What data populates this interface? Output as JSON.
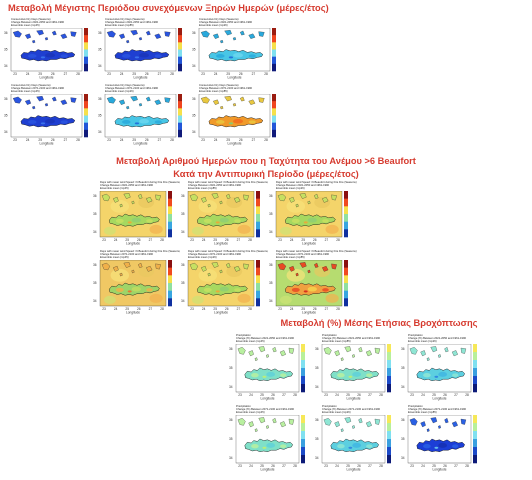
{
  "section1": {
    "title": "Μεταβολή Μέγιστης Περιόδου συνεχόμενων Ξηρών Ημερών (μέρες/έτος)",
    "panels": [
      {
        "lines": [
          "Consecutive Dry Days (Seasons)",
          "Change Between 2021-2050 and 1961-1990",
          "Ensemble mean (rcp45)"
        ],
        "scheme": "dry_blue"
      },
      {
        "lines": [
          "Consecutive Dry Days (Seasons)",
          "Change Between 2021-2050 and 1961-1990",
          "Ensemble mean (rcp85)"
        ],
        "scheme": "dry_blue"
      },
      {
        "lines": [
          "Consecutive Dry Days (Seasons)",
          "Change Between 2021-2050 and 1961-1990",
          "Ensemble mean (rcp26)"
        ],
        "scheme": "dry_cyan"
      },
      {
        "lines": [
          "Consecutive Dry Days (Seasons)",
          "Change Between 2071-2100 and 1961-1990",
          "Ensemble mean (rcp45)"
        ],
        "scheme": "dry_blue"
      },
      {
        "lines": [
          "Consecutive Dry Days (Seasons)",
          "Change Between 2071-2100 and 1961-1990",
          "Ensemble mean (rcp26)"
        ],
        "scheme": "dry_cyan"
      },
      {
        "lines": [
          "Consecutive Dry Days (Seasons)",
          "Change Between 2071-2100 and 1961-1990",
          "Ensemble mean (rcp85)"
        ],
        "scheme": "dry_warm"
      }
    ]
  },
  "section2": {
    "title": "Μεταβολή Αριθμού Ημερών που η Ταχύτητα του Ανέμου >6 Beaufort",
    "subtitle": "Κατά την Αντιπυρική Περίοδο (μέρες/έτος)",
    "panels": [
      {
        "lines": [
          "Days with mean wind Speed >6 Beaufort during Fire Fire (Seasons)",
          "Change Between 2021-2050 and 1961-1990",
          "Ensemble mean (rcp45)"
        ],
        "scheme": "wind_a"
      },
      {
        "lines": [
          "Days with mean wind Speed >6 Beaufort during Fire Fire (Seasons)",
          "Change Between 2021-2050 and 1961-1990",
          "Ensemble mean (rcp85)"
        ],
        "scheme": "wind_a"
      },
      {
        "lines": [
          "Days with mean wind Speed >6 Beaufort during Fire Fire (Seasons)",
          "Change Between 2021-2050 and 1961-1990",
          "Ensemble mean (rcp26)"
        ],
        "scheme": "wind_a"
      },
      {
        "lines": [
          "Days with mean wind Speed >6 Beaufort during Fire Fire (Seasons)",
          "Change Between 2071-2100 and 1961-1990",
          "Ensemble mean (rcp45)"
        ],
        "scheme": "wind_b"
      },
      {
        "lines": [
          "Days with mean wind Speed >6 Beaufort during Fire Fire (Seasons)",
          "Change Between 2071-2100 and 1961-1990",
          "Ensemble mean (rcp26)"
        ],
        "scheme": "wind_a"
      },
      {
        "lines": [
          "Days with mean wind Speed >6 Beaufort during Fire Fire (Seasons)",
          "Change Between 2071-2100 and 1961-1990",
          "Ensemble mean (rcp85)"
        ],
        "scheme": "wind_c"
      }
    ]
  },
  "section3": {
    "title": "Μεταβολή (%) Μέσης Ετήσιας Βροχόπτωσης",
    "panels": [
      {
        "lines": [
          "Precipitation",
          "Change (%) Between 2021-2050 and 1961-1990",
          "Ensemble mean (rcp45)"
        ],
        "scheme": "pr_a"
      },
      {
        "lines": [
          "Precipitation",
          "Change (%) Between 2021-2050 and 1961-1990",
          "Ensemble mean (rcp85)"
        ],
        "scheme": "pr_a"
      },
      {
        "lines": [
          "Precipitation",
          "Change (%) Between 2021-2050 and 1961-1990",
          "Ensemble mean (rcp26)"
        ],
        "scheme": "pr_b"
      },
      {
        "lines": [
          "Precipitation",
          "Change (%) Between 2071-2100 and 1961-1990",
          "Ensemble mean (rcp45)"
        ],
        "scheme": "pr_a"
      },
      {
        "lines": [
          "Precipitation",
          "Change (%) Between 2071-2100 and 1961-1990",
          "Ensemble mean (rcp26)"
        ],
        "scheme": "pr_b"
      },
      {
        "lines": [
          "Precipitation",
          "Change (%) Between 2071-2100 and 1961-1990",
          "Ensemble mean (rcp85)"
        ],
        "scheme": "pr_c"
      }
    ]
  },
  "axis": {
    "xticks": [
      "23",
      "24",
      "25",
      "26",
      "27",
      "28"
    ],
    "yticks": [
      "36",
      "35",
      "34"
    ],
    "xlabel": "Longitude"
  }
}
